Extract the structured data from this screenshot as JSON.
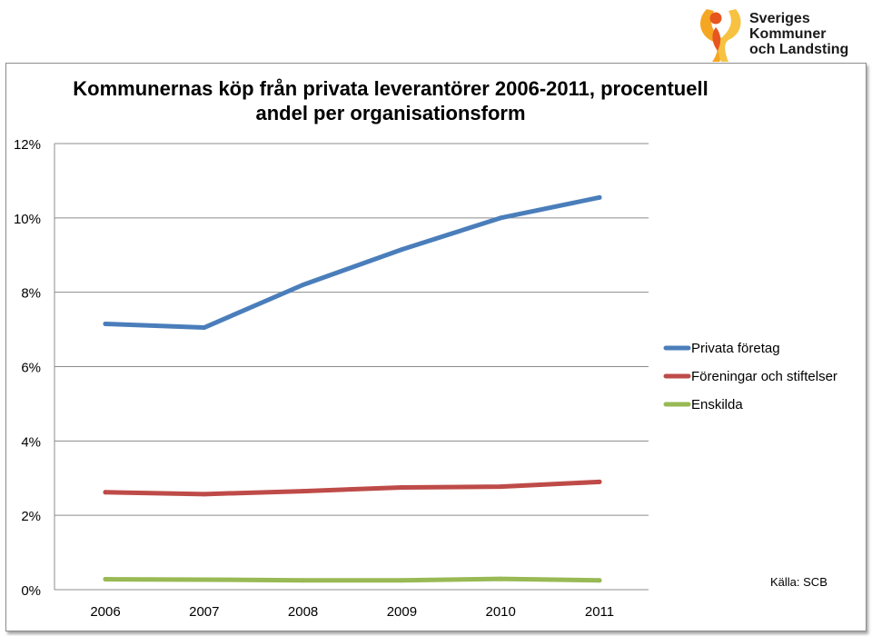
{
  "logo": {
    "line1": "Sveriges",
    "line2": "Kommuner",
    "line3": "och Landsting",
    "icon": "skl-flame-figure-icon"
  },
  "source_note": "Källa: SCB",
  "chart_data": {
    "type": "line",
    "title": "Kommunernas köp från privata leverantörer 2006-2011, procentuell andel per organisationsform",
    "xlabel": "",
    "ylabel": "",
    "categories": [
      "2006",
      "2007",
      "2008",
      "2009",
      "2010",
      "2011"
    ],
    "ylim": [
      0,
      12
    ],
    "yticks": [
      0,
      2,
      4,
      6,
      8,
      10,
      12
    ],
    "ytick_labels": [
      "0%",
      "2%",
      "4%",
      "6%",
      "8%",
      "10%",
      "12%"
    ],
    "grid": true,
    "legend_position": "right",
    "series": [
      {
        "name": "Privata företag",
        "color": "#4a7ebb",
        "values": [
          7.15,
          7.05,
          8.2,
          9.15,
          10.0,
          10.55
        ]
      },
      {
        "name": "Föreningar och stiftelser",
        "color": "#be4b48",
        "values": [
          2.62,
          2.57,
          2.65,
          2.75,
          2.77,
          2.9
        ]
      },
      {
        "name": "Enskilda",
        "color": "#98b954",
        "values": [
          0.28,
          0.27,
          0.25,
          0.25,
          0.29,
          0.25
        ]
      }
    ]
  }
}
